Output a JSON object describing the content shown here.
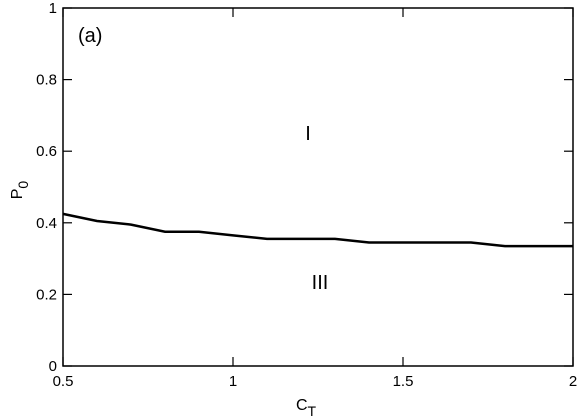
{
  "chart_data": {
    "type": "line",
    "x": [
      0.5,
      0.6,
      0.7,
      0.8,
      0.9,
      1.0,
      1.1,
      1.2,
      1.3,
      1.4,
      1.5,
      1.6,
      1.7,
      1.8,
      1.9,
      2.0
    ],
    "series": [
      {
        "color": "#000000",
        "values": [
          0.425,
          0.405,
          0.395,
          0.375,
          0.375,
          0.365,
          0.355,
          0.355,
          0.355,
          0.345,
          0.345,
          0.345,
          0.345,
          0.335,
          0.335,
          0.335
        ]
      }
    ],
    "xlim": [
      0.5,
      2
    ],
    "ylim": [
      0,
      1
    ],
    "xticks": [
      0.5,
      1,
      1.5,
      2
    ],
    "yticks": [
      0,
      0.2,
      0.4,
      0.6,
      0.8,
      1
    ],
    "xlabel": {
      "text": "C",
      "sub": "T"
    },
    "ylabel": {
      "text": "P",
      "sub": "0"
    },
    "annotations": [
      "(a)",
      "I",
      "III"
    ]
  }
}
